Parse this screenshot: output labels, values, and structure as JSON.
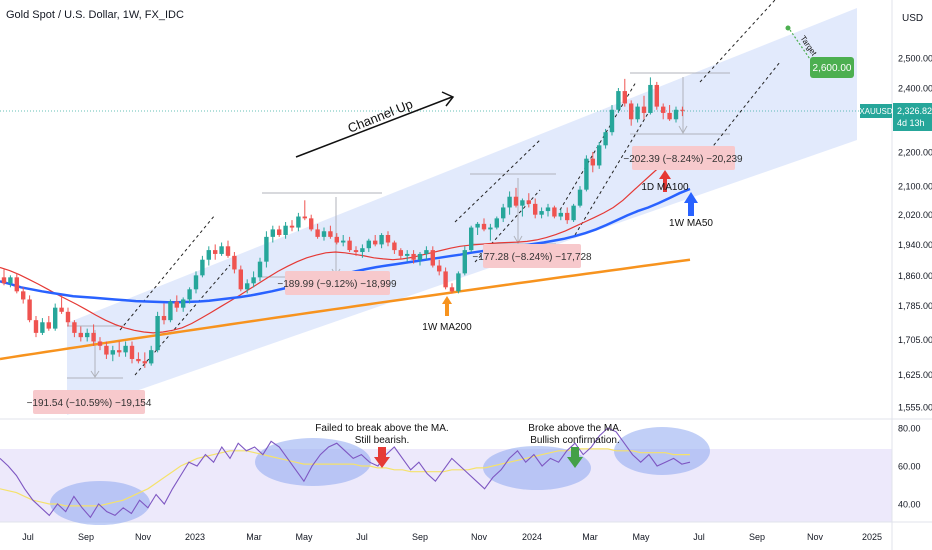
{
  "header": {
    "title": "Gold Spot / U.S. Dollar, 1W, FX_IDC",
    "currency": "USD"
  },
  "price_axis": {
    "ticks": [
      {
        "label": "2,500.00",
        "value": 2500
      },
      {
        "label": "2,400.00",
        "value": 2400
      },
      {
        "label": "2,200.00",
        "value": 2200
      },
      {
        "label": "2,100.00",
        "value": 2100
      },
      {
        "label": "2,020.00",
        "value": 2020
      },
      {
        "label": "1,940.00",
        "value": 1940
      },
      {
        "label": "1,860.00",
        "value": 1860
      },
      {
        "label": "1,785.00",
        "value": 1785
      },
      {
        "label": "1,705.00",
        "value": 1705
      },
      {
        "label": "1,625.00",
        "value": 1625
      },
      {
        "label": "1,555.00",
        "value": 1555
      }
    ],
    "ticker_label": "XAUUSD",
    "current_price": "2,326.82",
    "countdown": "4d 13h",
    "target_label": "2,600.00"
  },
  "rsi_axis": {
    "ticks": [
      {
        "label": "80.00",
        "value": 80
      },
      {
        "label": "60.00",
        "value": 60
      },
      {
        "label": "40.00",
        "value": 40
      }
    ]
  },
  "time_axis": [
    {
      "label": "Jul",
      "x": 28
    },
    {
      "label": "Sep",
      "x": 86
    },
    {
      "label": "Nov",
      "x": 143
    },
    {
      "label": "2023",
      "x": 195
    },
    {
      "label": "Mar",
      "x": 254
    },
    {
      "label": "May",
      "x": 304
    },
    {
      "label": "Jul",
      "x": 362
    },
    {
      "label": "Sep",
      "x": 420
    },
    {
      "label": "Nov",
      "x": 479
    },
    {
      "label": "2024",
      "x": 532
    },
    {
      "label": "Mar",
      "x": 590
    },
    {
      "label": "May",
      "x": 641
    },
    {
      "label": "Jul",
      "x": 699
    },
    {
      "label": "Sep",
      "x": 757
    },
    {
      "label": "Nov",
      "x": 815
    },
    {
      "label": "2025",
      "x": 872
    }
  ],
  "annotations": {
    "channel_label": "Channel Up",
    "target_text": "Target",
    "drop1": "−191.54 (−10.59%) −19,154",
    "drop2": "−189.99 (−9.12%) −18,999",
    "drop3": "−177.28 (−8.24%) −17,728",
    "drop4": "−202.39 (−8.24%) −20,239",
    "ma200_label": "1W MA200",
    "ma100_label": "1D MA100",
    "ma50_label": "1W MA50",
    "rsi_note1_line1": "Failed to break above the MA.",
    "rsi_note1_line2": "Still bearish.",
    "rsi_note2_line1": "Broke above the MA.",
    "rsi_note2_line2": "Bullish confirmation."
  },
  "colors": {
    "bull": "#26a69a",
    "bear": "#ef5350",
    "ma50": "#2962ff",
    "ma100": "#e53935",
    "ma200": "#f7931e",
    "channel": "#dde6fb",
    "rsi": "#7e57c2",
    "rsi_ma": "#f5e26b",
    "target_green": "#4caf50"
  },
  "chart_data": {
    "type": "candlestick",
    "title": "Gold Spot / U.S. Dollar, 1W, FX_IDC",
    "price_scale": "log",
    "y_ticks": [
      1555,
      1625,
      1705,
      1785,
      1860,
      1940,
      2020,
      2100,
      2200,
      2400,
      2500
    ],
    "x_ticks": [
      "Jul",
      "Sep",
      "Nov",
      "2023",
      "Mar",
      "May",
      "Jul",
      "Sep",
      "Nov",
      "2024",
      "Mar",
      "May",
      "Jul",
      "Sep",
      "Nov",
      "2025"
    ],
    "current_price": 2326.82,
    "target": 2600.0,
    "rsi_ticks": [
      40,
      60,
      80
    ],
    "candles": [
      [
        1855,
        1875,
        1835,
        1840
      ],
      [
        1840,
        1860,
        1830,
        1855
      ],
      [
        1855,
        1865,
        1815,
        1820
      ],
      [
        1820,
        1830,
        1790,
        1800
      ],
      [
        1800,
        1810,
        1745,
        1750
      ],
      [
        1750,
        1760,
        1710,
        1720
      ],
      [
        1720,
        1755,
        1715,
        1745
      ],
      [
        1745,
        1760,
        1725,
        1730
      ],
      [
        1730,
        1790,
        1725,
        1780
      ],
      [
        1780,
        1810,
        1765,
        1770
      ],
      [
        1770,
        1780,
        1735,
        1745
      ],
      [
        1745,
        1750,
        1710,
        1720
      ],
      [
        1720,
        1735,
        1700,
        1710
      ],
      [
        1710,
        1730,
        1700,
        1720
      ],
      [
        1720,
        1740,
        1690,
        1700
      ],
      [
        1700,
        1710,
        1680,
        1690
      ],
      [
        1690,
        1700,
        1660,
        1670
      ],
      [
        1670,
        1690,
        1655,
        1680
      ],
      [
        1680,
        1700,
        1665,
        1675
      ],
      [
        1675,
        1700,
        1665,
        1690
      ],
      [
        1690,
        1700,
        1650,
        1660
      ],
      [
        1660,
        1675,
        1650,
        1655
      ],
      [
        1655,
        1675,
        1640,
        1650
      ],
      [
        1650,
        1690,
        1645,
        1680
      ],
      [
        1680,
        1770,
        1675,
        1760
      ],
      [
        1760,
        1790,
        1740,
        1750
      ],
      [
        1750,
        1800,
        1745,
        1795
      ],
      [
        1795,
        1810,
        1770,
        1780
      ],
      [
        1780,
        1805,
        1770,
        1800
      ],
      [
        1800,
        1830,
        1790,
        1825
      ],
      [
        1825,
        1870,
        1815,
        1860
      ],
      [
        1860,
        1910,
        1855,
        1900
      ],
      [
        1900,
        1935,
        1885,
        1925
      ],
      [
        1925,
        1940,
        1900,
        1915
      ],
      [
        1915,
        1945,
        1910,
        1935
      ],
      [
        1935,
        1950,
        1905,
        1910
      ],
      [
        1910,
        1920,
        1865,
        1875
      ],
      [
        1875,
        1885,
        1820,
        1825
      ],
      [
        1825,
        1850,
        1815,
        1840
      ],
      [
        1840,
        1870,
        1830,
        1855
      ],
      [
        1855,
        1905,
        1845,
        1895
      ],
      [
        1895,
        1975,
        1880,
        1960
      ],
      [
        1960,
        1990,
        1945,
        1980
      ],
      [
        1980,
        1990,
        1960,
        1965
      ],
      [
        1965,
        2000,
        1955,
        1990
      ],
      [
        1990,
        2005,
        1975,
        1985
      ],
      [
        1985,
        2025,
        1975,
        2015
      ],
      [
        2015,
        2060,
        2005,
        2010
      ],
      [
        2010,
        2020,
        1975,
        1980
      ],
      [
        1980,
        1995,
        1955,
        1960
      ],
      [
        1960,
        1985,
        1950,
        1975
      ],
      [
        1975,
        1990,
        1955,
        1960
      ],
      [
        1960,
        1970,
        1940,
        1945
      ],
      [
        1945,
        1965,
        1935,
        1950
      ],
      [
        1950,
        1960,
        1920,
        1925
      ],
      [
        1925,
        1935,
        1910,
        1920
      ],
      [
        1920,
        1940,
        1905,
        1930
      ],
      [
        1930,
        1955,
        1920,
        1950
      ],
      [
        1950,
        1965,
        1935,
        1940
      ],
      [
        1940,
        1970,
        1930,
        1965
      ],
      [
        1965,
        1975,
        1935,
        1945
      ],
      [
        1945,
        1950,
        1915,
        1925
      ],
      [
        1925,
        1930,
        1900,
        1910
      ],
      [
        1910,
        1925,
        1895,
        1915
      ],
      [
        1915,
        1925,
        1890,
        1900
      ],
      [
        1900,
        1920,
        1885,
        1915
      ],
      [
        1915,
        1935,
        1900,
        1925
      ],
      [
        1925,
        1935,
        1880,
        1885
      ],
      [
        1885,
        1900,
        1860,
        1870
      ],
      [
        1870,
        1880,
        1825,
        1830
      ],
      [
        1830,
        1840,
        1815,
        1820
      ],
      [
        1820,
        1870,
        1815,
        1865
      ],
      [
        1865,
        1935,
        1860,
        1925
      ],
      [
        1925,
        1990,
        1920,
        1985
      ],
      [
        1985,
        2000,
        1965,
        1995
      ],
      [
        1995,
        2010,
        1975,
        1980
      ],
      [
        1980,
        1995,
        1950,
        1985
      ],
      [
        1985,
        2015,
        1980,
        2010
      ],
      [
        2010,
        2050,
        2000,
        2040
      ],
      [
        2040,
        2085,
        2020,
        2070
      ],
      [
        2070,
        2095,
        2040,
        2045
      ],
      [
        2045,
        2065,
        2015,
        2060
      ],
      [
        2060,
        2080,
        2040,
        2050
      ],
      [
        2050,
        2065,
        2010,
        2020
      ],
      [
        2020,
        2040,
        2010,
        2030
      ],
      [
        2030,
        2050,
        2015,
        2040
      ],
      [
        2040,
        2045,
        2010,
        2015
      ],
      [
        2015,
        2035,
        2005,
        2025
      ],
      [
        2025,
        2040,
        1995,
        2005
      ],
      [
        2005,
        2050,
        2000,
        2045
      ],
      [
        2045,
        2100,
        2040,
        2090
      ],
      [
        2090,
        2190,
        2085,
        2180
      ],
      [
        2180,
        2200,
        2140,
        2160
      ],
      [
        2160,
        2230,
        2150,
        2220
      ],
      [
        2220,
        2270,
        2210,
        2260
      ],
      [
        2260,
        2345,
        2250,
        2330
      ],
      [
        2330,
        2400,
        2320,
        2390
      ],
      [
        2390,
        2430,
        2340,
        2350
      ],
      [
        2350,
        2360,
        2280,
        2300
      ],
      [
        2300,
        2350,
        2290,
        2340
      ],
      [
        2340,
        2375,
        2300,
        2320
      ],
      [
        2320,
        2435,
        2315,
        2410
      ],
      [
        2410,
        2420,
        2330,
        2340
      ],
      [
        2340,
        2350,
        2300,
        2320
      ],
      [
        2320,
        2345,
        2295,
        2300
      ],
      [
        2300,
        2340,
        2290,
        2330
      ],
      [
        2330,
        2340,
        2310,
        2326.82
      ]
    ],
    "ma50": [
      1845,
      1838,
      1830,
      1825,
      1820,
      1816,
      1812,
      1808,
      1806,
      1804,
      1802,
      1800,
      1798,
      1796,
      1795,
      1794,
      1793,
      1793,
      1794,
      1795,
      1797,
      1800,
      1803,
      1806,
      1810,
      1815,
      1820,
      1826,
      1832,
      1838,
      1845,
      1852,
      1858,
      1864,
      1870,
      1876,
      1881,
      1885,
      1889,
      1893,
      1897,
      1901,
      1905,
      1909,
      1913,
      1918,
      1922,
      1926,
      1930,
      1933,
      1937,
      1941,
      1945,
      1950,
      1955,
      1962,
      1970,
      1980,
      1992,
      2005,
      2018,
      2030,
      2040,
      2052,
      2066,
      2080,
      2092
    ],
    "ma100": [
      1880,
      1872,
      1862,
      1850,
      1838,
      1825,
      1812,
      1800,
      1788,
      1775,
      1762,
      1750,
      1740,
      1732,
      1726,
      1722,
      1720,
      1722,
      1726,
      1732,
      1742,
      1755,
      1768,
      1782,
      1796,
      1810,
      1825,
      1840,
      1855,
      1870,
      1883,
      1895,
      1905,
      1912,
      1918,
      1920,
      1918,
      1914,
      1910,
      1905,
      1902,
      1900,
      1902,
      1906,
      1912,
      1918,
      1924,
      1930,
      1935,
      1938,
      1940,
      1942,
      1944,
      1945,
      1946,
      1948,
      1952,
      1958,
      1966,
      1976,
      1988,
      2000,
      2012,
      2025,
      2040,
      2060,
      2085,
      2110,
      2135,
      2160,
      2180,
      2195,
      2205
    ],
    "ma200": [
      1660,
      1664,
      1668,
      1672,
      1676,
      1680,
      1684,
      1688,
      1692,
      1696,
      1700,
      1704,
      1708,
      1712,
      1716,
      1720,
      1724,
      1728,
      1732,
      1736,
      1740,
      1744,
      1748,
      1752,
      1756,
      1760,
      1764,
      1768,
      1772,
      1776,
      1780,
      1784,
      1788,
      1792,
      1796,
      1800,
      1804,
      1808,
      1812,
      1816,
      1820,
      1824,
      1828,
      1832,
      1836,
      1840,
      1844,
      1848,
      1852,
      1856,
      1860,
      1864,
      1868,
      1872,
      1876,
      1880,
      1884,
      1888,
      1892,
      1896,
      1900
    ],
    "rsi": [
      64,
      60,
      55,
      48,
      42,
      38,
      34,
      40,
      36,
      44,
      38,
      33,
      40,
      36,
      34,
      38,
      35,
      42,
      38,
      45,
      40,
      48,
      55,
      62,
      60,
      66,
      62,
      70,
      64,
      72,
      68,
      70,
      66,
      73,
      70,
      64,
      58,
      52,
      60,
      66,
      70,
      72,
      68,
      64,
      66,
      62,
      60,
      66,
      70,
      64,
      58,
      62,
      56,
      52,
      58,
      64,
      60,
      56,
      52,
      48,
      54,
      58,
      64,
      68,
      62,
      66,
      60,
      64,
      62,
      68,
      72,
      66,
      70,
      76,
      80,
      78,
      72,
      66,
      62,
      66,
      60,
      62,
      64,
      61,
      62
    ],
    "rsi_ma": [
      48,
      47,
      46,
      44,
      42,
      41,
      40,
      40,
      39,
      39,
      39,
      39,
      39,
      40,
      41,
      42,
      44,
      46,
      48,
      51,
      54,
      57,
      60,
      62,
      64,
      65,
      66,
      67,
      68,
      68,
      68,
      67,
      66,
      65,
      64,
      63,
      62,
      61,
      61,
      61,
      61,
      61,
      61,
      61,
      60,
      60,
      59,
      59,
      58,
      58,
      57,
      57,
      57,
      57,
      57,
      58,
      58,
      58,
      59,
      59,
      60,
      61,
      62,
      63,
      64,
      65,
      66,
      67,
      68,
      68,
      69,
      69,
      69,
      69,
      69,
      68,
      68,
      68,
      67,
      67,
      67,
      67,
      66,
      66,
      66
    ]
  }
}
